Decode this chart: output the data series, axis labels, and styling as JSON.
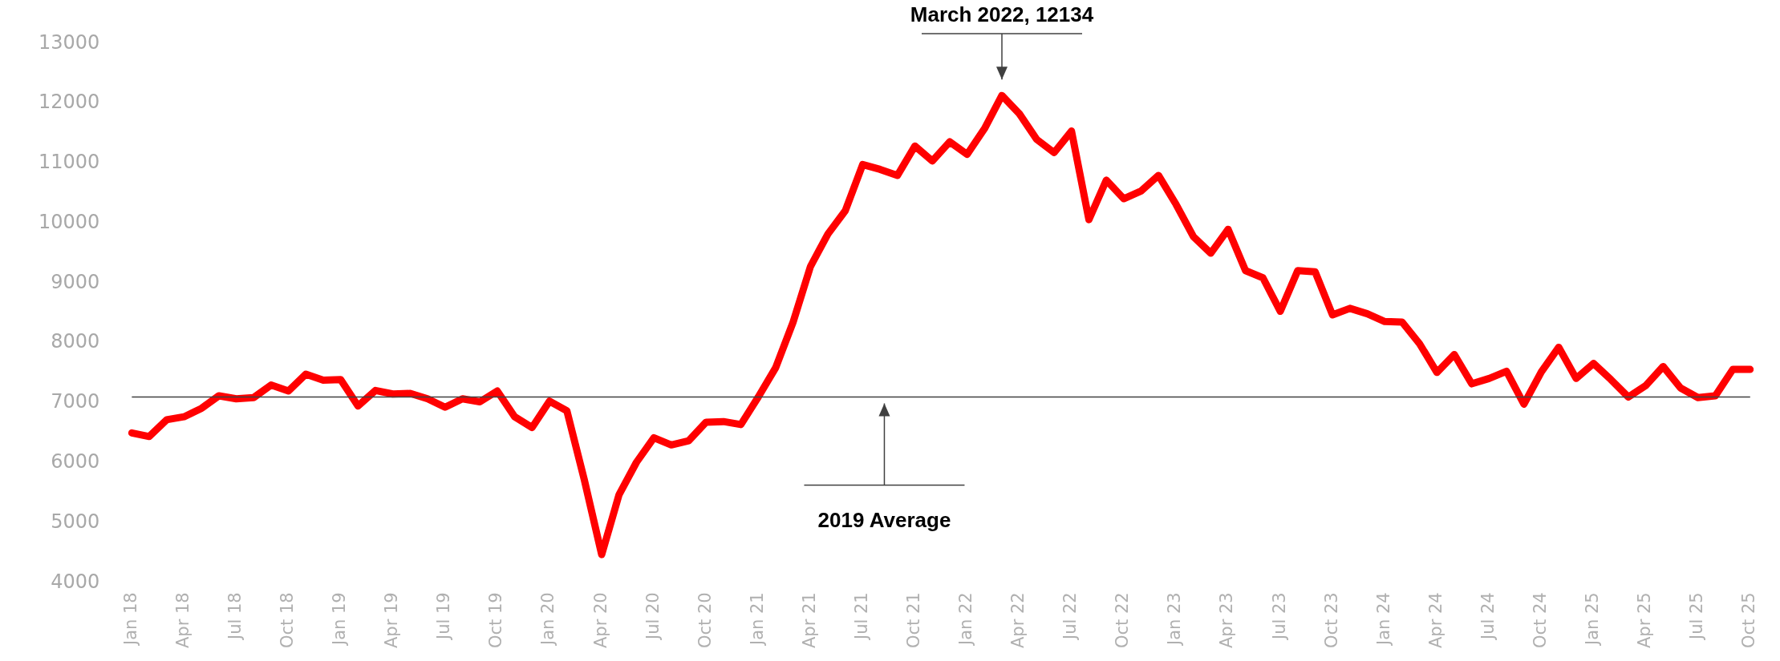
{
  "chart_data": {
    "type": "line",
    "categories": [
      "Jan 18",
      null,
      null,
      "Apr 18",
      null,
      null,
      "Jul 18",
      null,
      null,
      "Oct 18",
      null,
      null,
      "Jan 19",
      null,
      null,
      "Apr 19",
      null,
      null,
      "Jul 19",
      null,
      null,
      "Oct 19",
      null,
      null,
      "Jan 20",
      null,
      null,
      "Apr 20",
      null,
      null,
      "Jul 20",
      null,
      null,
      "Oct 20",
      null,
      null,
      "Jan 21",
      null,
      null,
      "Apr 21",
      null,
      null,
      "Jul 21",
      null,
      null,
      "Oct 21",
      null,
      null,
      "Jan 22",
      null,
      null,
      "Apr 22",
      null,
      null,
      "Jul 22",
      null,
      null,
      "Oct 22",
      null,
      null,
      "Jan 23",
      null,
      null,
      "Apr 23",
      null,
      null,
      "Jul 23",
      null,
      null,
      "Oct 23",
      null,
      null,
      "Jan 24",
      null,
      null,
      "Apr 24",
      null,
      null,
      "Jul 24",
      null,
      null,
      "Oct 24",
      null,
      null,
      "Jan 25",
      null,
      null,
      "Apr 25",
      null,
      null,
      "Jul 25",
      null,
      null,
      "Oct 25"
    ],
    "series": [
      {
        "color": "#ff0000",
        "values": [
          6500,
          6440,
          6720,
          6770,
          6910,
          7120,
          7070,
          7090,
          7300,
          7200,
          7480,
          7380,
          7390,
          6950,
          7210,
          7150,
          7160,
          7070,
          6930,
          7070,
          7020,
          7200,
          6770,
          6590,
          7030,
          6870,
          5720,
          4470,
          5470,
          6010,
          6420,
          6300,
          6370,
          6680,
          6690,
          6640,
          7100,
          7590,
          8350,
          9280,
          9820,
          10210,
          10980,
          10900,
          10800,
          11290,
          11040,
          11360,
          11150,
          11580,
          12134,
          11830,
          11400,
          11180,
          11540,
          10060,
          10720,
          10410,
          10540,
          10800,
          10320,
          9780,
          9500,
          9900,
          9210,
          9090,
          8530,
          9210,
          9190,
          8470,
          8580,
          8490,
          8360,
          8350,
          7990,
          7510,
          7810,
          7320,
          7410,
          7530,
          6980,
          7520,
          7930,
          7410,
          7660,
          7390,
          7100,
          7290,
          7610,
          7250,
          7090,
          7120,
          7560,
          7560
        ]
      }
    ],
    "ylim": [
      4000,
      13000
    ],
    "yticks": [
      4000,
      5000,
      6000,
      7000,
      8000,
      9000,
      10000,
      11000,
      12000,
      13000
    ],
    "grid": false,
    "legend": false,
    "marker": "none",
    "line_style": "solid",
    "ref_lines": [
      {
        "axis": "y",
        "value": 7100,
        "label": "2019 Average",
        "color": "#404040"
      }
    ],
    "annotations": [
      "March 2022, 12134"
    ]
  }
}
